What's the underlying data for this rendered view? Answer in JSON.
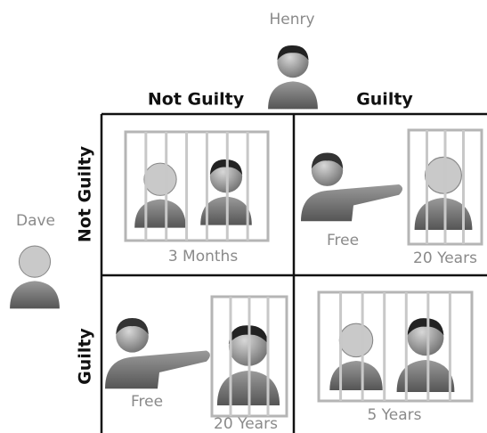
{
  "players": {
    "column": "Henry",
    "row": "Dave"
  },
  "columns": [
    "Not Guilty",
    "Guilty"
  ],
  "rows": [
    "Not Guilty",
    "Guilty"
  ],
  "cells": [
    [
      {
        "labels": [
          "3 Months"
        ]
      },
      {
        "labels": [
          "Free",
          "20 Years"
        ]
      }
    ],
    [
      {
        "labels": [
          "Free",
          "20 Years"
        ]
      },
      {
        "labels": [
          "5 Years"
        ]
      }
    ]
  ]
}
